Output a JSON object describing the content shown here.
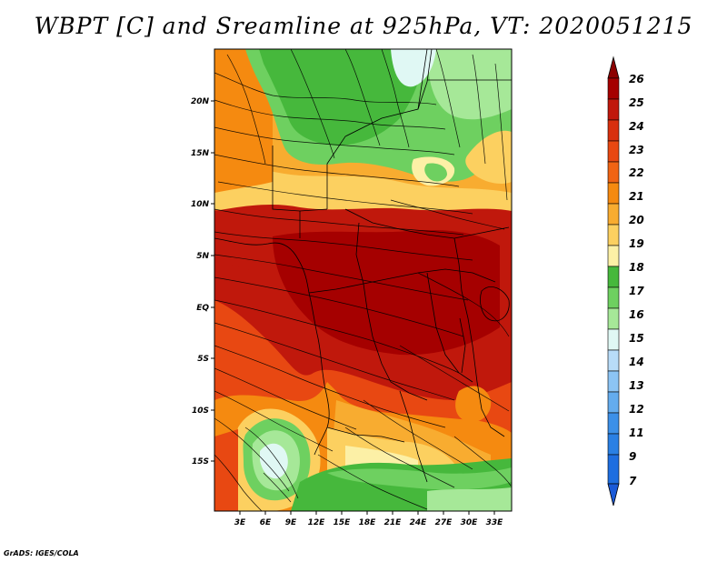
{
  "title": "WBPT [C] and Sreamline at 925hPa, VT: 2020051215",
  "credit": "GrADS: IGES/COLA",
  "map": {
    "lon_range": [
      0,
      35
    ],
    "lat_range": [
      -20,
      24
    ],
    "lat_ticks": [
      "20N",
      "15N",
      "10N",
      "5N",
      "EQ",
      "5S",
      "10S",
      "15S"
    ],
    "lat_tick_values": [
      20,
      15,
      10,
      5,
      0,
      -5,
      -10,
      -15
    ],
    "lon_ticks": [
      "3E",
      "6E",
      "9E",
      "12E",
      "15E",
      "18E",
      "21E",
      "24E",
      "27E",
      "30E",
      "33E"
    ],
    "lon_tick_values": [
      3,
      6,
      9,
      12,
      15,
      18,
      21,
      24,
      27,
      30,
      33
    ],
    "fields": [
      "wet-bulb potential temperature",
      "streamlines"
    ]
  },
  "colorbar": {
    "labels": [
      "26",
      "25",
      "24",
      "23",
      "22",
      "21",
      "20",
      "19",
      "18",
      "17",
      "16",
      "15",
      "14",
      "13",
      "12",
      "11",
      "9",
      "7"
    ],
    "colors": [
      "#a50000",
      "#c0180c",
      "#d8300e",
      "#e84812",
      "#f06414",
      "#f58a10",
      "#f8ac30",
      "#fcd060",
      "#fcf0a6",
      "#46b83c",
      "#6ed060",
      "#a6e898",
      "#e0f8f4",
      "#b8dcf8",
      "#8cc4f4",
      "#64acee",
      "#3c90e8",
      "#1e6ee0"
    ],
    "top_arrow_color": "#8c0000",
    "bottom_arrow_color": "#1a5ad8"
  }
}
